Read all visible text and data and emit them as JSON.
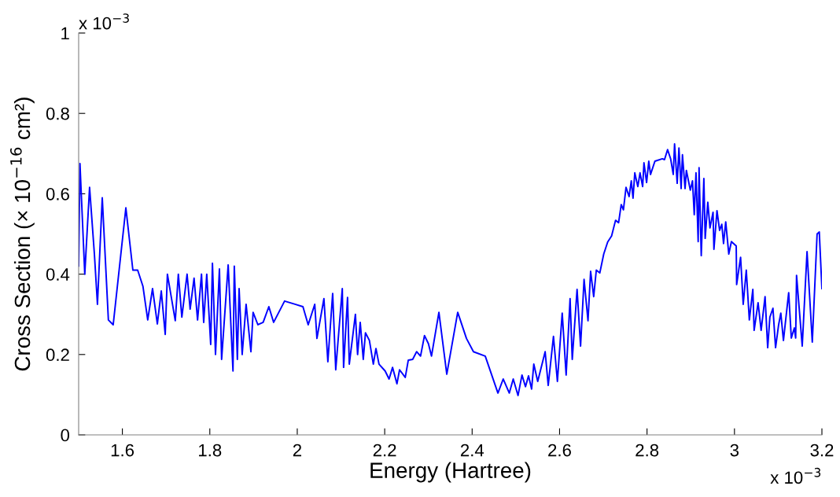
{
  "chart_data": {
    "type": "line",
    "xlabel": "Energy (Hartree)",
    "ylabel": "Cross Section (× 10$^{−16}$ cm²)",
    "annotations": [
      "x 10$^{−3}$",
      "x 10$^{−3}$"
    ],
    "xlim": [
      1.5,
      3.2
    ],
    "xticks": [
      1.6,
      1.8,
      2,
      2.2,
      2.4,
      2.6,
      2.8,
      3,
      3.2
    ],
    "ylim": [
      0,
      1
    ],
    "yticks": [
      0,
      0.2,
      0.4,
      0.6,
      0.8,
      1
    ],
    "grid": false,
    "marker": "none",
    "line_style": "solid",
    "series": [
      {
        "color": "#0000ff",
        "x": [
          1.5,
          1.503,
          1.514,
          1.525,
          1.536,
          1.543,
          1.554,
          1.568,
          1.579,
          1.608,
          1.624,
          1.635,
          1.647,
          1.658,
          1.669,
          1.68,
          1.689,
          1.698,
          1.703,
          1.721,
          1.728,
          1.736,
          1.748,
          1.755,
          1.764,
          1.772,
          1.781,
          1.786,
          1.793,
          1.802,
          1.806,
          1.813,
          1.822,
          1.827,
          1.842,
          1.853,
          1.856,
          1.863,
          1.867,
          1.874,
          1.883,
          1.894,
          1.899,
          1.91,
          1.922,
          1.935,
          1.946,
          1.971,
          1.995,
          2.013,
          2.025,
          2.04,
          2.045,
          2.061,
          2.07,
          2.081,
          2.088,
          2.103,
          2.106,
          2.115,
          2.119,
          2.133,
          2.138,
          2.144,
          2.151,
          2.156,
          2.165,
          2.174,
          2.18,
          2.187,
          2.201,
          2.21,
          2.218,
          2.228,
          2.234,
          2.247,
          2.254,
          2.264,
          2.273,
          2.282,
          2.291,
          2.3,
          2.307,
          2.324,
          2.342,
          2.367,
          2.387,
          2.403,
          2.43,
          2.459,
          2.471,
          2.485,
          2.494,
          2.505,
          2.514,
          2.522,
          2.529,
          2.536,
          2.541,
          2.55,
          2.567,
          2.574,
          2.586,
          2.595,
          2.606,
          2.615,
          2.624,
          2.629,
          2.64,
          2.648,
          2.656,
          2.665,
          2.671,
          2.678,
          2.684,
          2.692,
          2.701,
          2.71,
          2.719,
          2.728,
          2.735,
          2.741,
          2.746,
          2.752,
          2.759,
          2.764,
          2.768,
          2.772,
          2.779,
          2.784,
          2.79,
          2.793,
          2.799,
          2.804,
          2.808,
          2.818,
          2.835,
          2.84,
          2.847,
          2.854,
          2.86,
          2.863,
          2.869,
          2.873,
          2.878,
          2.881,
          2.887,
          2.89,
          2.899,
          2.904,
          2.908,
          2.912,
          2.917,
          2.919,
          2.924,
          2.93,
          2.933,
          2.939,
          2.944,
          2.951,
          2.953,
          2.96,
          2.966,
          2.971,
          2.975,
          2.98,
          2.987,
          2.993,
          3.004,
          3.005,
          3.014,
          3.02,
          3.027,
          3.034,
          3.042,
          3.045,
          3.054,
          3.061,
          3.07,
          3.076,
          3.081,
          3.088,
          3.094,
          3.101,
          3.106,
          3.112,
          3.124,
          3.13,
          3.137,
          3.14,
          3.142,
          3.155,
          3.166,
          3.178,
          3.189,
          3.194,
          3.2
        ],
        "values": [
          0.42,
          0.675,
          0.4,
          0.616,
          0.45,
          0.325,
          0.59,
          0.286,
          0.274,
          0.565,
          0.41,
          0.41,
          0.37,
          0.286,
          0.364,
          0.276,
          0.358,
          0.25,
          0.4,
          0.284,
          0.4,
          0.293,
          0.4,
          0.313,
          0.39,
          0.286,
          0.4,
          0.28,
          0.4,
          0.225,
          0.427,
          0.2,
          0.413,
          0.188,
          0.423,
          0.159,
          0.42,
          0.188,
          0.364,
          0.2,
          0.325,
          0.207,
          0.305,
          0.274,
          0.28,
          0.319,
          0.28,
          0.333,
          0.325,
          0.319,
          0.274,
          0.325,
          0.24,
          0.339,
          0.182,
          0.352,
          0.162,
          0.364,
          0.168,
          0.342,
          0.176,
          0.3,
          0.2,
          0.28,
          0.188,
          0.254,
          0.235,
          0.176,
          0.215,
          0.176,
          0.159,
          0.139,
          0.168,
          0.127,
          0.162,
          0.143,
          0.186,
          0.188,
          0.207,
          0.196,
          0.247,
          0.227,
          0.196,
          0.305,
          0.151,
          0.305,
          0.24,
          0.207,
          0.196,
          0.104,
          0.139,
          0.104,
          0.139,
          0.098,
          0.149,
          0.12,
          0.147,
          0.114,
          0.176,
          0.133,
          0.207,
          0.123,
          0.245,
          0.133,
          0.303,
          0.149,
          0.339,
          0.188,
          0.362,
          0.221,
          0.387,
          0.284,
          0.407,
          0.344,
          0.41,
          0.403,
          0.45,
          0.48,
          0.495,
          0.534,
          0.528,
          0.573,
          0.56,
          0.616,
          0.593,
          0.632,
          0.589,
          0.652,
          0.618,
          0.652,
          0.618,
          0.677,
          0.628,
          0.681,
          0.648,
          0.681,
          0.687,
          0.685,
          0.71,
          0.687,
          0.648,
          0.724,
          0.626,
          0.714,
          0.613,
          0.697,
          0.613,
          0.658,
          0.609,
          0.632,
          0.548,
          0.652,
          0.481,
          0.665,
          0.446,
          0.638,
          0.489,
          0.579,
          0.515,
          0.554,
          0.462,
          0.558,
          0.509,
          0.524,
          0.476,
          0.53,
          0.45,
          0.481,
          0.47,
          0.374,
          0.442,
          0.325,
          0.41,
          0.286,
          0.362,
          0.26,
          0.329,
          0.26,
          0.344,
          0.217,
          0.293,
          0.315,
          0.217,
          0.274,
          0.303,
          0.235,
          0.354,
          0.241,
          0.266,
          0.241,
          0.397,
          0.221,
          0.456,
          0.231,
          0.5,
          0.505,
          0.364
        ]
      }
    ]
  }
}
